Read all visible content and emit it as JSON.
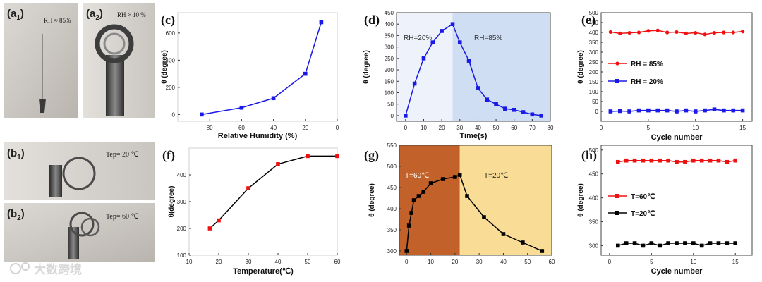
{
  "photos": {
    "a1": {
      "label": "(a",
      "sub": "1",
      "close": ")",
      "note": "RH ≈ 85%"
    },
    "a2": {
      "label": "(a",
      "sub": "2",
      "close": ")",
      "note": "RH ≈ 10 %"
    },
    "b1": {
      "label": "(b",
      "sub": "1",
      "close": ")",
      "note": "Tep= 20 ℃"
    },
    "b2": {
      "label": "(b",
      "sub": "2",
      "close": ")",
      "note": "Tep= 60 ℃"
    }
  },
  "watermark": {
    "text": "大数跨境"
  },
  "colors": {
    "blue": "#1a1ae6",
    "red": "#ee1111",
    "black": "#000000",
    "dBefore": "#eef3fb",
    "dAfter": "#cfdef2",
    "gBefore": "#c2622a",
    "gAfter": "#f9dc96"
  },
  "chart_data": [
    {
      "id": "c",
      "panel_label": "(c)",
      "type": "line",
      "xlabel": "Relative Humidity (%)",
      "ylabel": "θ (degree)",
      "xlim": [
        100,
        0
      ],
      "ylim": [
        -50,
        750
      ],
      "xticks": [
        80,
        60,
        40,
        20,
        0
      ],
      "yticks": [
        0,
        200,
        400,
        600
      ],
      "series": [
        {
          "name": "θ",
          "x": [
            85,
            60,
            40,
            20,
            10
          ],
          "y": [
            0,
            50,
            120,
            300,
            680
          ],
          "color": "blue",
          "marker": "square"
        }
      ]
    },
    {
      "id": "d",
      "panel_label": "(d)",
      "type": "line",
      "xlabel": "Time(s)",
      "ylabel": "θ (degree)",
      "xlim": [
        -5,
        80
      ],
      "ylim": [
        -25,
        450
      ],
      "xticks": [
        0,
        10,
        20,
        30,
        40,
        50,
        60,
        70,
        80
      ],
      "yticks": [
        0,
        50,
        100,
        150,
        200,
        250,
        300,
        350,
        400,
        450
      ],
      "regions": [
        {
          "from": -5,
          "to": 26,
          "color": "dBefore",
          "label": "RH=20%"
        },
        {
          "from": 26,
          "to": 80,
          "color": "dAfter",
          "label": "RH=85%"
        }
      ],
      "series": [
        {
          "name": "θ",
          "x": [
            0,
            5,
            10,
            15,
            20,
            26,
            30,
            35,
            40,
            45,
            50,
            55,
            60,
            65,
            70,
            75
          ],
          "y": [
            0,
            140,
            250,
            320,
            370,
            400,
            320,
            240,
            120,
            70,
            50,
            30,
            25,
            15,
            5,
            0
          ],
          "color": "blue",
          "marker": "square"
        }
      ]
    },
    {
      "id": "e",
      "panel_label": "(e)",
      "type": "line",
      "xlabel": "Cycle number",
      "ylabel": "θ (degree)",
      "xlim": [
        0,
        16
      ],
      "ylim": [
        -50,
        500
      ],
      "xticks": [
        0,
        5,
        10,
        15
      ],
      "yticks": [
        0,
        50,
        100,
        150,
        200,
        250,
        300,
        350,
        400,
        450,
        500
      ],
      "series": [
        {
          "name": "RH = 85%",
          "x": [
            1,
            2,
            3,
            4,
            5,
            6,
            7,
            8,
            9,
            10,
            11,
            12,
            13,
            14,
            15
          ],
          "y": [
            402,
            395,
            398,
            400,
            408,
            410,
            400,
            402,
            395,
            398,
            390,
            398,
            400,
            400,
            405
          ],
          "color": "red",
          "marker": "circle"
        },
        {
          "name": "RH = 20%",
          "x": [
            1,
            2,
            3,
            4,
            5,
            6,
            7,
            8,
            9,
            10,
            11,
            12,
            13,
            14,
            15
          ],
          "y": [
            0,
            2,
            0,
            5,
            5,
            5,
            5,
            0,
            5,
            0,
            5,
            10,
            5,
            5,
            5
          ],
          "color": "blue",
          "marker": "square"
        }
      ]
    },
    {
      "id": "f",
      "panel_label": "(f)",
      "type": "line",
      "xlabel": "Temperature(℃)",
      "ylabel": "θ(degree)",
      "xlim": [
        10,
        60
      ],
      "ylim": [
        100,
        500
      ],
      "xticks": [
        10,
        20,
        30,
        40,
        50,
        60
      ],
      "yticks": [
        100,
        200,
        300,
        400
      ],
      "series": [
        {
          "name": "θ",
          "x": [
            17,
            20,
            30,
            40,
            50,
            60
          ],
          "y": [
            200,
            230,
            350,
            440,
            470,
            470
          ],
          "color": "red",
          "marker": "square",
          "line": "black"
        }
      ]
    },
    {
      "id": "g",
      "panel_label": "(g)",
      "type": "line",
      "xlabel": "",
      "ylabel": "θ (degree)",
      "xlim": [
        -3,
        60
      ],
      "ylim": [
        290,
        550
      ],
      "xticks": [
        0,
        10,
        20,
        30,
        40,
        50,
        60
      ],
      "yticks": [
        300,
        350,
        400,
        450,
        500,
        550
      ],
      "regions": [
        {
          "from": -3,
          "to": 22,
          "color": "gBefore",
          "label": "T=60℃"
        },
        {
          "from": 22,
          "to": 60,
          "color": "gAfter",
          "label": "T=20℃"
        }
      ],
      "series": [
        {
          "name": "θ",
          "x": [
            0,
            1,
            2,
            3,
            5,
            7,
            10,
            15,
            20,
            22,
            25,
            32,
            40,
            48,
            56
          ],
          "y": [
            300,
            360,
            390,
            420,
            430,
            440,
            460,
            470,
            475,
            480,
            430,
            380,
            340,
            320,
            300
          ],
          "color": "black",
          "marker": "square"
        }
      ]
    },
    {
      "id": "h",
      "panel_label": "(h)",
      "type": "line",
      "xlabel": "Cycle number",
      "ylabel": "θ (degree)",
      "xlim": [
        -1,
        17
      ],
      "ylim": [
        280,
        510
      ],
      "xticks": [
        0,
        5,
        10,
        15
      ],
      "yticks": [
        300,
        350,
        400,
        450,
        500
      ],
      "series": [
        {
          "name": "T=60℃",
          "x": [
            1,
            2,
            3,
            4,
            5,
            6,
            7,
            8,
            9,
            10,
            11,
            12,
            13,
            14,
            15
          ],
          "y": [
            475,
            478,
            478,
            478,
            478,
            478,
            478,
            475,
            475,
            478,
            478,
            478,
            478,
            475,
            478
          ],
          "color": "red",
          "marker": "square"
        },
        {
          "name": "T=20℃",
          "x": [
            1,
            2,
            3,
            4,
            5,
            6,
            7,
            8,
            9,
            10,
            11,
            12,
            13,
            14,
            15
          ],
          "y": [
            300,
            305,
            305,
            300,
            305,
            300,
            305,
            305,
            305,
            305,
            300,
            305,
            305,
            305,
            305
          ],
          "color": "black",
          "marker": "square"
        }
      ]
    }
  ]
}
